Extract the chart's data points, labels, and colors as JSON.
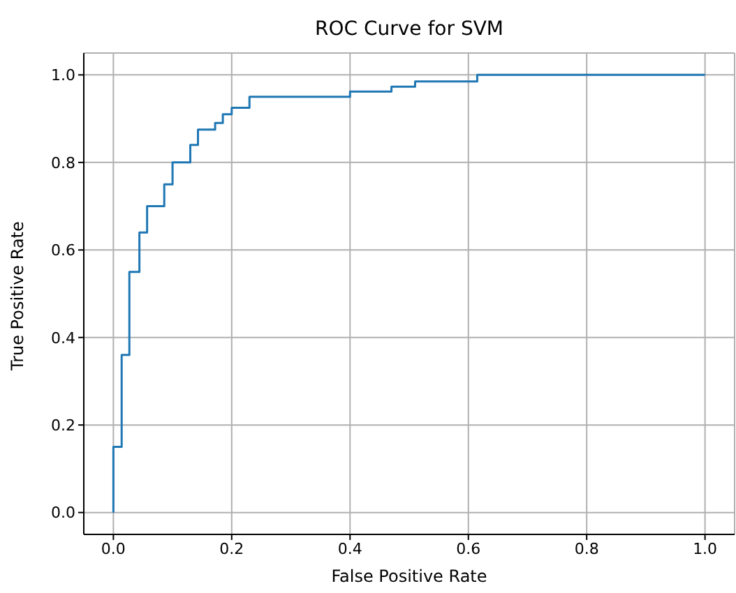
{
  "chart_data": {
    "type": "step",
    "title": "ROC Curve for SVM",
    "xlabel": "False Positive Rate",
    "ylabel": "True Positive Rate",
    "x": [
      0,
      0,
      0.014,
      0.027,
      0.044,
      0.057,
      0.086,
      0.1,
      0.13,
      0.143,
      0.172,
      0.185,
      0.2,
      0.23,
      0.4,
      0.47,
      0.51,
      0.615,
      1
    ],
    "series": [
      {
        "color": "#1f77b4",
        "values": [
          0,
          0.15,
          0.36,
          0.55,
          0.64,
          0.7,
          0.75,
          0.8,
          0.84,
          0.875,
          0.89,
          0.91,
          0.925,
          0.95,
          0.962,
          0.973,
          0.985,
          1,
          1
        ]
      }
    ],
    "xlim": [
      -0.05,
      1.05
    ],
    "ylim": [
      -0.05,
      1.05
    ],
    "xticks": [
      {
        "value": 0,
        "label": "0.0"
      },
      {
        "value": 0.2,
        "label": "0.2"
      },
      {
        "value": 0.4,
        "label": "0.4"
      },
      {
        "value": 0.6,
        "label": "0.6"
      },
      {
        "value": 0.8,
        "label": "0.8"
      },
      {
        "value": 1,
        "label": "1.0"
      }
    ],
    "yticks": [
      {
        "value": 0,
        "label": "0.0"
      },
      {
        "value": 0.2,
        "label": "0.2"
      },
      {
        "value": 0.4,
        "label": "0.4"
      },
      {
        "value": 0.6,
        "label": "0.6"
      },
      {
        "value": 0.8,
        "label": "0.8"
      },
      {
        "value": 1,
        "label": "1.0"
      }
    ],
    "grid": true
  }
}
